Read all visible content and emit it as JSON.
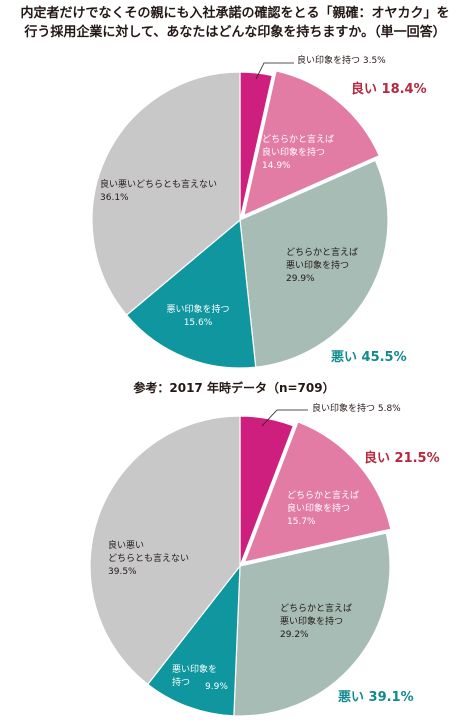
{
  "title": {
    "line1": "内定者だけでなくその親にも入社承諾の確認をとる「親確：オヤカク」を",
    "line2": "行う採用企業に対して、あなたはどんな印象を持ちますか。（単一回答）"
  },
  "reference_label": "参考：2017 年時データ（n=709）",
  "colors": {
    "good": "#cf1f7e",
    "somewhat_good": "#e27ca5",
    "somewhat_bad": "#a6bcb5",
    "bad": "#10969e",
    "neutral": "#c8c8c9",
    "good_total_text": "#b5293e",
    "bad_total_text": "#128a8e"
  },
  "chart_data": [
    {
      "type": "pie",
      "slices": [
        {
          "label": "良い印象を持つ",
          "value": 3.5,
          "value_label": "3.5%"
        },
        {
          "label": "どちらかと言えば\n良い印象を持つ",
          "value": 14.9,
          "value_label": "14.9%"
        },
        {
          "label": "どちらかと言えば\n悪い印象を持つ",
          "value": 29.9,
          "value_label": "29.9%"
        },
        {
          "label": "悪い印象を持つ",
          "value": 15.6,
          "value_label": "15.6%"
        },
        {
          "label": "良い悪いどちらとも言えない",
          "value": 36.1,
          "value_label": "36.1%"
        }
      ],
      "totals": [
        {
          "label": "良い",
          "value": 18.4,
          "value_label": "18.4%"
        },
        {
          "label": "悪い",
          "value": 45.5,
          "value_label": "45.5%"
        }
      ]
    },
    {
      "type": "pie",
      "slices": [
        {
          "label": "良い印象を持つ",
          "value": 5.8,
          "value_label": "5.8%"
        },
        {
          "label": "どちらかと言えば\n良い印象を持つ",
          "value": 15.7,
          "value_label": "15.7%"
        },
        {
          "label": "どちらかと言えば\n悪い印象を持つ",
          "value": 29.2,
          "value_label": "29.2%"
        },
        {
          "label": "悪い印象を\n持つ",
          "value": 9.9,
          "value_label": "9.9%"
        },
        {
          "label": "良い悪い\nどちらとも言えない",
          "value": 39.5,
          "value_label": "39.5%"
        }
      ],
      "totals": [
        {
          "label": "良い",
          "value": 21.5,
          "value_label": "21.5%"
        },
        {
          "label": "悪い",
          "value": 39.1,
          "value_label": "39.1%"
        }
      ]
    }
  ]
}
